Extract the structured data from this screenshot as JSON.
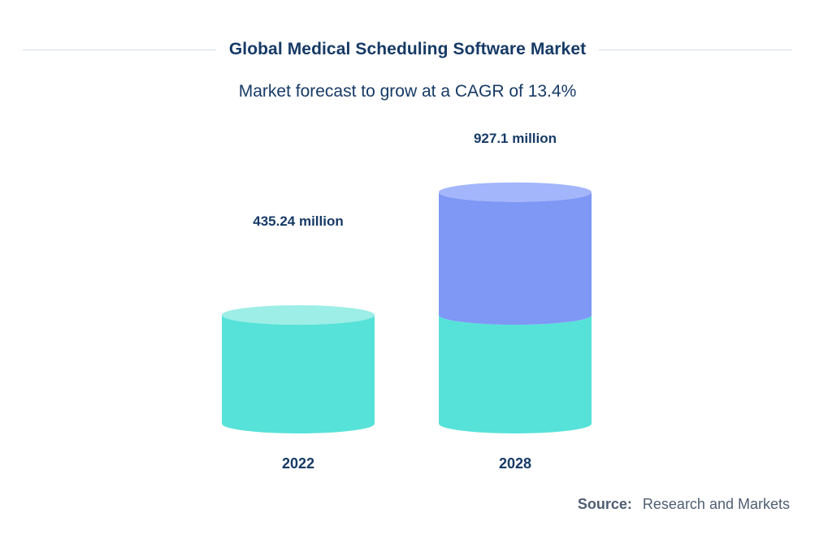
{
  "chart_data": {
    "type": "bar",
    "title": "Global Medical Scheduling Software Market",
    "subtitle": "Market forecast to grow at a CAGR of 13.4%",
    "categories": [
      "2022",
      "2028"
    ],
    "values": [
      435.24,
      927.1
    ],
    "value_labels": [
      "435.24 million",
      "927.1 million"
    ],
    "series_colors": {
      "base": "#56e2d8",
      "base_top": "#9ceee6",
      "growth": "#7f97f5",
      "growth_top": "#a3b6fb"
    },
    "ylim": [
      0,
      1000
    ]
  },
  "source": {
    "label": "Source:",
    "text": "Research and Markets"
  },
  "colors": {
    "title": "#163a66",
    "muted": "#4e5e72",
    "rule": "#d7dde5"
  }
}
